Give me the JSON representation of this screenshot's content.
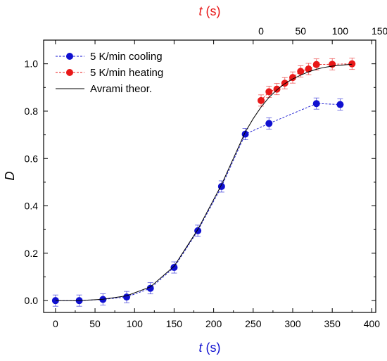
{
  "chart_data": {
    "type": "scatter",
    "x_bottom": {
      "label_var": "t",
      "label_unit": " (s)",
      "ticks": [
        0,
        50,
        100,
        150,
        200,
        250,
        300,
        350,
        400
      ],
      "range": [
        -15,
        405
      ]
    },
    "x_top": {
      "label_var": "t",
      "label_unit": " (s)",
      "ticks": [
        0,
        50,
        100,
        150
      ],
      "offset": 260,
      "range": [
        -15,
        405
      ]
    },
    "y": {
      "label": "D",
      "ticks": [
        0.0,
        0.2,
        0.4,
        0.6,
        0.8,
        1.0
      ],
      "tick_labels": [
        "0.0",
        "0.2",
        "0.4",
        "0.6",
        "0.8",
        "1.0"
      ],
      "range": [
        -0.05,
        1.1
      ]
    },
    "legend_position": "top-left",
    "grid": false,
    "series": [
      {
        "name": "5 K/min cooling",
        "color": "#1010d0",
        "style": "dashed-markers",
        "x": [
          0,
          30,
          60,
          90,
          120,
          150,
          180,
          210,
          240,
          270,
          330,
          360
        ],
        "y": [
          0.0,
          0.0,
          0.005,
          0.015,
          0.052,
          0.14,
          0.295,
          0.482,
          0.703,
          0.748,
          0.832,
          0.828
        ]
      },
      {
        "name": "5 K/min heating",
        "color": "#e81818",
        "style": "dashed-markers",
        "x": [
          260,
          270,
          280,
          290,
          300,
          310,
          320,
          330,
          350,
          375
        ],
        "y": [
          0.845,
          0.882,
          0.893,
          0.918,
          0.942,
          0.968,
          0.978,
          0.997,
          0.998,
          1.0
        ]
      },
      {
        "name": "Avrami theor.",
        "color": "#000000",
        "style": "solid-line",
        "x": [
          0,
          30,
          60,
          90,
          120,
          150,
          180,
          210,
          240,
          250,
          260,
          270,
          280,
          290,
          300,
          310,
          320,
          330,
          340,
          350,
          360,
          375
        ],
        "y": [
          0.0,
          0.0,
          0.006,
          0.02,
          0.058,
          0.145,
          0.3,
          0.49,
          0.712,
          0.768,
          0.817,
          0.858,
          0.89,
          0.916,
          0.936,
          0.952,
          0.966,
          0.977,
          0.985,
          0.99,
          0.994,
          0.998
        ]
      }
    ]
  }
}
